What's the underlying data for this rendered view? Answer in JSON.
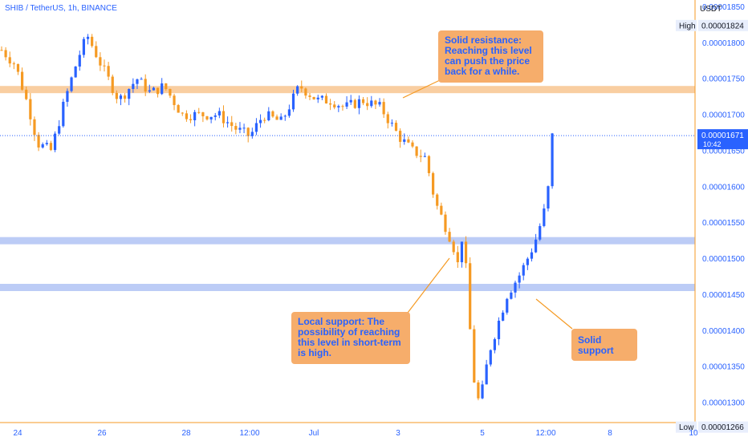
{
  "header": {
    "symbol": "SHIB / TetherUS, 1h, BINANCE"
  },
  "axis": {
    "currency": "USDT",
    "ticks": [
      "0.00001850",
      "0.00001800",
      "0.00001750",
      "0.00001700",
      "0.00001650",
      "0.00001600",
      "0.00001550",
      "0.00001500",
      "0.00001450",
      "0.00001400",
      "0.00001350",
      "0.00001300"
    ],
    "x_labels": [
      "24",
      "26",
      "28",
      "12:00",
      "Jul",
      "3",
      "5",
      "12:00",
      "8",
      "10"
    ]
  },
  "badges": {
    "high_label": "High",
    "high_value": "0.00001824",
    "low_label": "Low",
    "low_value": "0.00001266",
    "last_price": "0.00001671",
    "countdown": "10:42"
  },
  "annotations": {
    "resistance": "Solid resistance: Reaching this level can push the price back for a while.",
    "local_support": "Local support: The possibility of reaching this level in short-term is high.",
    "solid_support": "Solid support"
  },
  "colors": {
    "up": "#2962ff",
    "down": "#f59a23",
    "resistance_zone": "#f9cb9c",
    "support_zone": "#b8c9f5",
    "callout": "#f6ad6b"
  },
  "chart_data": {
    "type": "candlestick",
    "title": "SHIB / TetherUS, 1h, BINANCE",
    "ylabel": "USDT",
    "ylim": [
      1.26e-05,
      1.86e-05
    ],
    "x_ticks": [
      "24",
      "26",
      "28",
      "12:00",
      "Jul",
      "3",
      "5",
      "12:00",
      "8",
      "10"
    ],
    "high": 1.824e-05,
    "low": 1.266e-05,
    "last": 1.671e-05,
    "zones": [
      {
        "kind": "resistance",
        "from": 1.73e-05,
        "to": 1.74e-05
      },
      {
        "kind": "support",
        "from": 1.52e-05,
        "to": 1.53e-05
      },
      {
        "kind": "support",
        "from": 1.455e-05,
        "to": 1.465e-05
      }
    ],
    "path": [
      [
        0,
        1.79e-05
      ],
      [
        3,
        1.77e-05
      ],
      [
        6,
        1.71e-05
      ],
      [
        8,
        1.66e-05
      ],
      [
        11,
        1.65e-05
      ],
      [
        14,
        1.72e-05
      ],
      [
        17,
        1.78e-05
      ],
      [
        19,
        1.81e-05
      ],
      [
        22,
        1.77e-05
      ],
      [
        26,
        1.72e-05
      ],
      [
        30,
        1.75e-05
      ],
      [
        33,
        1.73e-05
      ],
      [
        36,
        1.74e-05
      ],
      [
        40,
        1.7e-05
      ],
      [
        44,
        1.7e-05
      ],
      [
        48,
        1.7e-05
      ],
      [
        52,
        1.68e-05
      ],
      [
        55,
        1.67e-05
      ],
      [
        58,
        1.7e-05
      ],
      [
        62,
        1.69e-05
      ],
      [
        66,
        1.74e-05
      ],
      [
        70,
        1.72e-05
      ],
      [
        73,
        1.72e-05
      ],
      [
        76,
        1.71e-05
      ],
      [
        80,
        1.72e-05
      ],
      [
        84,
        1.71e-05
      ],
      [
        88,
        1.67e-05
      ],
      [
        91,
        1.65e-05
      ],
      [
        94,
        1.64e-05
      ],
      [
        96,
        1.58e-05
      ],
      [
        98,
        1.55e-05
      ],
      [
        100,
        1.52e-05
      ],
      [
        101,
        1.49e-05
      ],
      [
        102,
        1.53e-05
      ],
      [
        103,
        1.48e-05
      ],
      [
        104,
        1.38e-05
      ],
      [
        105,
        1.31e-05
      ],
      [
        106,
        1.3e-05
      ],
      [
        108,
        1.37e-05
      ],
      [
        110,
        1.41e-05
      ],
      [
        112,
        1.45e-05
      ],
      [
        115,
        1.48e-05
      ],
      [
        118,
        1.52e-05
      ],
      [
        120,
        1.56e-05
      ],
      [
        121,
        1.59e-05
      ],
      [
        122,
        1.67e-05
      ]
    ]
  }
}
